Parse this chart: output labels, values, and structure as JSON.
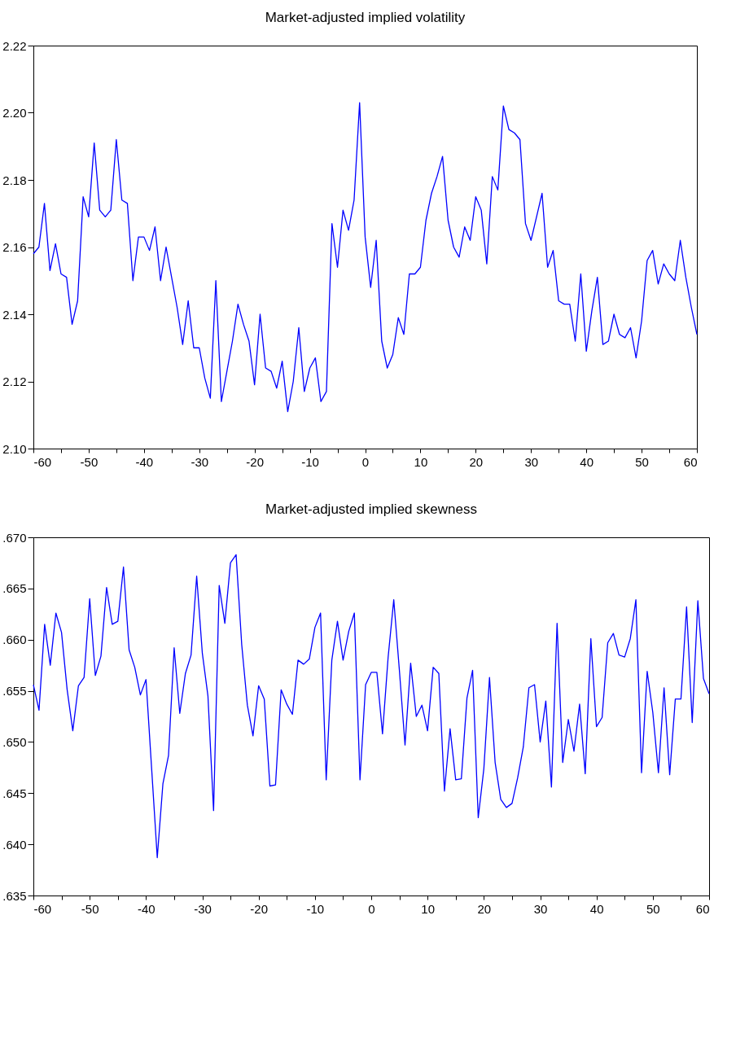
{
  "chart_data": [
    {
      "type": "line",
      "title": "Market-adjusted implied volatility",
      "x": [
        -60,
        -59,
        -58,
        -57,
        -56,
        -55,
        -54,
        -53,
        -52,
        -51,
        -50,
        -49,
        -48,
        -47,
        -46,
        -45,
        -44,
        -43,
        -42,
        -41,
        -40,
        -39,
        -38,
        -37,
        -36,
        -35,
        -34,
        -33,
        -32,
        -31,
        -30,
        -29,
        -28,
        -27,
        -26,
        -25,
        -24,
        -23,
        -22,
        -21,
        -20,
        -19,
        -18,
        -17,
        -16,
        -15,
        -14,
        -13,
        -12,
        -11,
        -10,
        -9,
        -8,
        -7,
        -6,
        -5,
        -4,
        -3,
        -2,
        -1,
        0,
        1,
        2,
        3,
        4,
        5,
        6,
        7,
        8,
        9,
        10,
        11,
        12,
        13,
        14,
        15,
        16,
        17,
        18,
        19,
        20,
        21,
        22,
        23,
        24,
        25,
        26,
        27,
        28,
        29,
        30,
        31,
        32,
        33,
        34,
        35,
        36,
        37,
        38,
        39,
        40,
        41,
        42,
        43,
        44,
        45,
        46,
        47,
        48,
        49,
        50,
        51,
        52,
        53,
        54,
        55,
        56,
        57,
        58,
        59,
        60
      ],
      "series": [
        {
          "color": "#0000ff",
          "values": [
            2.158,
            2.16,
            2.173,
            2.153,
            2.161,
            2.152,
            2.151,
            2.137,
            2.144,
            2.175,
            2.169,
            2.191,
            2.171,
            2.169,
            2.171,
            2.192,
            2.174,
            2.173,
            2.15,
            2.163,
            2.163,
            2.159,
            2.166,
            2.15,
            2.16,
            2.151,
            2.142,
            2.131,
            2.144,
            2.13,
            2.13,
            2.121,
            2.115,
            2.15,
            2.114,
            2.123,
            2.132,
            2.143,
            2.137,
            2.132,
            2.119,
            2.14,
            2.124,
            2.123,
            2.118,
            2.126,
            2.111,
            2.12,
            2.136,
            2.117,
            2.124,
            2.127,
            2.114,
            2.117,
            2.167,
            2.154,
            2.171,
            2.165,
            2.174,
            2.203,
            2.163,
            2.148,
            2.162,
            2.132,
            2.124,
            2.128,
            2.139,
            2.134,
            2.152,
            2.152,
            2.154,
            2.168,
            2.176,
            2.181,
            2.187,
            2.168,
            2.16,
            2.157,
            2.166,
            2.162,
            2.175,
            2.171,
            2.155,
            2.181,
            2.177,
            2.202,
            2.195,
            2.194,
            2.192,
            2.167,
            2.162,
            2.169,
            2.176,
            2.154,
            2.159,
            2.144,
            2.143,
            2.143,
            2.132,
            2.152,
            2.129,
            2.141,
            2.151,
            2.131,
            2.132,
            2.14,
            2.134,
            2.133,
            2.136,
            2.127,
            2.138,
            2.156,
            2.159,
            2.149,
            2.155,
            2.152,
            2.15,
            2.162,
            2.151,
            2.142,
            2.134
          ]
        }
      ],
      "xlim": [
        -60,
        60
      ],
      "xticks": [
        -60,
        {
          "value": -55,
          "label": null
        },
        -50,
        {
          "value": -45,
          "label": null
        },
        -40,
        {
          "value": -35,
          "label": null
        },
        -30,
        {
          "value": -25,
          "label": null
        },
        -20,
        {
          "value": -15,
          "label": null
        },
        -10,
        {
          "value": -5,
          "label": null
        },
        0,
        {
          "value": 5,
          "label": null
        },
        10,
        {
          "value": 15,
          "label": null
        },
        20,
        {
          "value": 25,
          "label": null
        },
        30,
        {
          "value": 35,
          "label": null
        },
        40,
        {
          "value": 45,
          "label": null
        },
        50,
        {
          "value": 55,
          "label": null
        },
        60
      ],
      "ylim": [
        2.1,
        2.22
      ],
      "yticks": [
        {
          "value": 2.1,
          "label": "2.10"
        },
        2.12,
        2.14,
        2.16,
        2.18,
        {
          "value": 2.2,
          "label": "2.20"
        },
        2.22
      ],
      "grid": false
    },
    {
      "type": "line",
      "title": "Market-adjusted implied skewness",
      "x": [
        -60,
        -59,
        -58,
        -57,
        -56,
        -55,
        -54,
        -53,
        -52,
        -51,
        -50,
        -49,
        -48,
        -47,
        -46,
        -45,
        -44,
        -43,
        -42,
        -41,
        -40,
        -39,
        -38,
        -37,
        -36,
        -35,
        -34,
        -33,
        -32,
        -31,
        -30,
        -29,
        -28,
        -27,
        -26,
        -25,
        -24,
        -23,
        -22,
        -21,
        -20,
        -19,
        -18,
        -17,
        -16,
        -15,
        -14,
        -13,
        -12,
        -11,
        -10,
        -9,
        -8,
        -7,
        -6,
        -5,
        -4,
        -3,
        -2,
        -1,
        0,
        1,
        2,
        3,
        4,
        5,
        6,
        7,
        8,
        9,
        10,
        11,
        12,
        13,
        14,
        15,
        16,
        17,
        18,
        19,
        20,
        21,
        22,
        23,
        24,
        25,
        26,
        27,
        28,
        29,
        30,
        31,
        32,
        33,
        34,
        35,
        36,
        37,
        38,
        39,
        40,
        41,
        42,
        43,
        44,
        45,
        46,
        47,
        48,
        49,
        50,
        51,
        52,
        53,
        54,
        55,
        56,
        57,
        58,
        59,
        60
      ],
      "series": [
        {
          "color": "#0000ff",
          "values": [
            0.6556,
            0.6531,
            0.6615,
            0.6575,
            0.6626,
            0.6607,
            0.6551,
            0.6511,
            0.6555,
            0.6563,
            0.664,
            0.6565,
            0.6584,
            0.6651,
            0.6615,
            0.6618,
            0.6671,
            0.659,
            0.6573,
            0.6546,
            0.6561,
            0.6474,
            0.6387,
            0.6459,
            0.6487,
            0.6592,
            0.6528,
            0.6567,
            0.6585,
            0.6662,
            0.6587,
            0.6545,
            0.6433,
            0.6653,
            0.6616,
            0.6675,
            0.6683,
            0.6595,
            0.6536,
            0.6506,
            0.6555,
            0.6542,
            0.6457,
            0.6458,
            0.6551,
            0.6537,
            0.6527,
            0.658,
            0.6576,
            0.6581,
            0.6612,
            0.6626,
            0.6463,
            0.658,
            0.6618,
            0.658,
            0.6608,
            0.6626,
            0.6463,
            0.6556,
            0.6568,
            0.6568,
            0.6508,
            0.6583,
            0.6639,
            0.657,
            0.6497,
            0.6577,
            0.6525,
            0.6536,
            0.6511,
            0.6573,
            0.6567,
            0.6452,
            0.6513,
            0.6463,
            0.6464,
            0.6543,
            0.657,
            0.6426,
            0.6474,
            0.6563,
            0.648,
            0.6444,
            0.6436,
            0.644,
            0.6465,
            0.6495,
            0.6553,
            0.6556,
            0.65,
            0.654,
            0.6456,
            0.6616,
            0.648,
            0.6522,
            0.6491,
            0.6537,
            0.6469,
            0.6601,
            0.6515,
            0.6524,
            0.6597,
            0.6606,
            0.6585,
            0.6583,
            0.6601,
            0.6639,
            0.647,
            0.6569,
            0.6529,
            0.647,
            0.6553,
            0.6468,
            0.6542,
            0.6542,
            0.6632,
            0.6519,
            0.6638,
            0.6562,
            0.6547
          ]
        }
      ],
      "xlim": [
        -60,
        60
      ],
      "xticks": [
        -60,
        {
          "value": -55,
          "label": null
        },
        -50,
        {
          "value": -45,
          "label": null
        },
        -40,
        {
          "value": -35,
          "label": null
        },
        -30,
        {
          "value": -25,
          "label": null
        },
        -20,
        {
          "value": -15,
          "label": null
        },
        -10,
        {
          "value": -5,
          "label": null
        },
        0,
        {
          "value": 5,
          "label": null
        },
        10,
        {
          "value": 15,
          "label": null
        },
        20,
        {
          "value": 25,
          "label": null
        },
        30,
        {
          "value": 35,
          "label": null
        },
        40,
        {
          "value": 45,
          "label": null
        },
        50,
        {
          "value": 55,
          "label": null
        },
        60
      ],
      "ylim": [
        0.635,
        0.67
      ],
      "yticks": [
        {
          "value": 0.635,
          "label": ".635"
        },
        {
          "value": 0.64,
          "label": ".640"
        },
        {
          "value": 0.645,
          "label": ".645"
        },
        {
          "value": 0.65,
          "label": ".650"
        },
        {
          "value": 0.655,
          "label": ".655"
        },
        {
          "value": 0.66,
          "label": ".660"
        },
        {
          "value": 0.665,
          "label": ".665"
        },
        {
          "value": 0.67,
          "label": ".670"
        }
      ],
      "grid": false
    }
  ]
}
